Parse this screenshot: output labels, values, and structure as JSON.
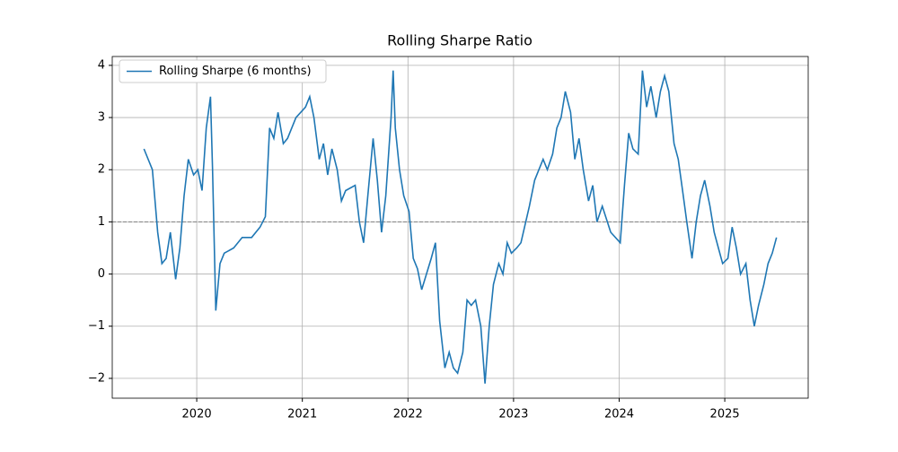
{
  "chart_data": {
    "type": "line",
    "title": "Rolling Sharpe Ratio",
    "x": [
      2019.5,
      2019.58,
      2019.63,
      2019.67,
      2019.71,
      2019.75,
      2019.8,
      2019.84,
      2019.88,
      2019.92,
      2019.97,
      2020.01,
      2020.05,
      2020.09,
      2020.13,
      2020.15,
      2020.18,
      2020.22,
      2020.26,
      2020.35,
      2020.43,
      2020.52,
      2020.6,
      2020.65,
      2020.69,
      2020.73,
      2020.77,
      2020.82,
      2020.86,
      2020.94,
      2021.03,
      2021.07,
      2021.11,
      2021.16,
      2021.2,
      2021.24,
      2021.28,
      2021.33,
      2021.37,
      2021.41,
      2021.5,
      2021.54,
      2021.58,
      2021.62,
      2021.67,
      2021.71,
      2021.75,
      2021.79,
      2021.84,
      2021.86,
      2021.88,
      2021.92,
      2021.96,
      2022.01,
      2022.05,
      2022.09,
      2022.13,
      2022.22,
      2022.26,
      2022.3,
      2022.35,
      2022.39,
      2022.43,
      2022.47,
      2022.52,
      2022.56,
      2022.6,
      2022.64,
      2022.69,
      2022.73,
      2022.77,
      2022.81,
      2022.86,
      2022.9,
      2022.94,
      2022.98,
      2023.03,
      2023.07,
      2023.15,
      2023.2,
      2023.24,
      2023.28,
      2023.32,
      2023.37,
      2023.41,
      2023.45,
      2023.49,
      2023.54,
      2023.58,
      2023.62,
      2023.66,
      2023.71,
      2023.75,
      2023.79,
      2023.84,
      2023.92,
      2024.01,
      2024.05,
      2024.09,
      2024.13,
      2024.18,
      2024.22,
      2024.26,
      2024.3,
      2024.35,
      2024.39,
      2024.43,
      2024.47,
      2024.52,
      2024.56,
      2024.6,
      2024.64,
      2024.69,
      2024.73,
      2024.77,
      2024.81,
      2024.86,
      2024.9,
      2024.94,
      2024.98,
      2025.03,
      2025.07,
      2025.11,
      2025.15,
      2025.2,
      2025.24,
      2025.28,
      2025.32,
      2025.37,
      2025.41,
      2025.45,
      2025.49
    ],
    "series": [
      {
        "name": "Rolling Sharpe (6 months)",
        "color": "#1f77b4",
        "values": [
          2.4,
          2.0,
          0.8,
          0.2,
          0.3,
          0.8,
          -0.1,
          0.5,
          1.5,
          2.2,
          1.9,
          2.0,
          1.6,
          2.8,
          3.4,
          2.0,
          -0.7,
          0.2,
          0.4,
          0.5,
          0.7,
          0.7,
          0.9,
          1.1,
          2.8,
          2.6,
          3.1,
          2.5,
          2.6,
          3.0,
          3.2,
          3.4,
          3.0,
          2.2,
          2.5,
          1.9,
          2.4,
          2.0,
          1.4,
          1.6,
          1.7,
          1.0,
          0.6,
          1.5,
          2.6,
          1.8,
          0.8,
          1.5,
          3.0,
          3.9,
          2.8,
          2.0,
          1.5,
          1.2,
          0.3,
          0.1,
          -0.3,
          0.3,
          0.6,
          -0.9,
          -1.8,
          -1.5,
          -1.8,
          -1.9,
          -1.5,
          -0.5,
          -0.6,
          -0.5,
          -1.0,
          -2.1,
          -1.0,
          -0.2,
          0.2,
          0.0,
          0.6,
          0.4,
          0.5,
          0.6,
          1.3,
          1.8,
          2.0,
          2.2,
          2.0,
          2.3,
          2.8,
          3.0,
          3.5,
          3.1,
          2.2,
          2.6,
          2.0,
          1.4,
          1.7,
          1.0,
          1.3,
          0.8,
          0.6,
          1.7,
          2.7,
          2.4,
          2.3,
          3.9,
          3.2,
          3.6,
          3.0,
          3.5,
          3.8,
          3.5,
          2.5,
          2.2,
          1.6,
          1.0,
          0.3,
          1.0,
          1.5,
          1.8,
          1.3,
          0.8,
          0.5,
          0.2,
          0.3,
          0.9,
          0.5,
          0.0,
          0.2,
          -0.5,
          -1.0,
          -0.6,
          -0.2,
          0.2,
          0.4,
          0.7
        ]
      }
    ],
    "xlim": [
      2019.2,
      2025.79
    ],
    "xticks": [
      2020,
      2021,
      2022,
      2023,
      2024,
      2025
    ],
    "ylim": [
      -2.38,
      4.17
    ],
    "yticks": [
      {
        "value": -2,
        "label": "−2"
      },
      {
        "value": -1,
        "label": "−1"
      },
      0,
      1,
      2,
      3,
      4
    ],
    "hline": 1,
    "hline_color": "#808080",
    "grid": true,
    "legend": "upper left"
  }
}
